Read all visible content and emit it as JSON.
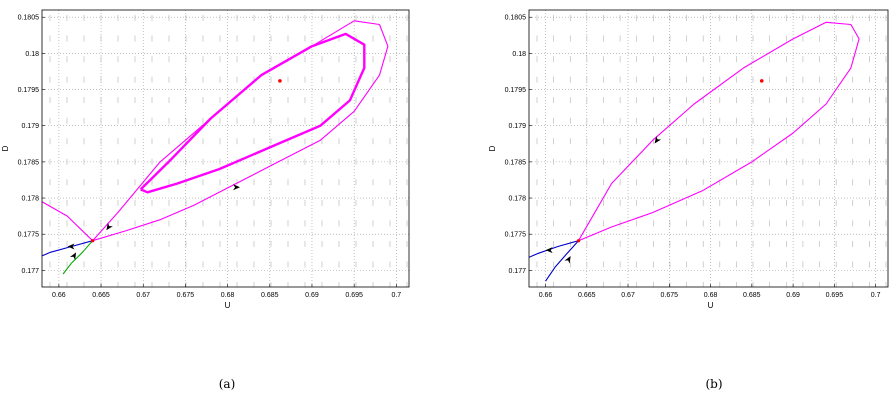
{
  "chart_data": [
    {
      "type": "line",
      "caption": "(a)",
      "xlabel": "U",
      "ylabel": "D",
      "xlim": [
        0.658,
        0.7015
      ],
      "ylim": [
        0.17677,
        0.1806
      ],
      "xticks": [
        "0.66",
        "0.665",
        "0.67",
        "0.675",
        "0.68",
        "0.685",
        "0.69",
        "0.695",
        "0.7"
      ],
      "yticks": [
        "0.177",
        "0.1775",
        "0.178",
        "0.1785",
        "0.179",
        "0.1795",
        "0.18",
        "0.1805"
      ],
      "grid": true,
      "equilibrium": {
        "x": 0.6862,
        "y": 0.17962,
        "color": "#ff0000"
      },
      "saddle": {
        "x": 0.664,
        "y": 0.17741,
        "color": "#ff0000"
      },
      "series": [
        {
          "role": "unstable-manifold-left",
          "color": "#0000cc",
          "x": [
            0.664,
            0.6615,
            0.659,
            0.658
          ],
          "y": [
            0.17741,
            0.17733,
            0.17725,
            0.1772
          ]
        },
        {
          "role": "stable-manifold-lower",
          "color": "#00aa00",
          "x": [
            0.664,
            0.6628,
            0.6615,
            0.6605
          ],
          "y": [
            0.17741,
            0.17725,
            0.1771,
            0.17695
          ]
        },
        {
          "role": "outer-orbit",
          "color": "#ff00ff",
          "x": [
            0.664,
            0.667,
            0.672,
            0.678,
            0.684,
            0.69,
            0.695,
            0.698,
            0.699,
            0.698,
            0.695,
            0.691,
            0.686,
            0.681,
            0.676,
            0.672,
            0.668,
            0.664,
            0.661,
            0.658
          ],
          "y": [
            0.17741,
            0.1778,
            0.1785,
            0.1791,
            0.1797,
            0.1801,
            0.18045,
            0.1804,
            0.1801,
            0.1797,
            0.1792,
            0.1788,
            0.1785,
            0.1782,
            0.1779,
            0.1777,
            0.17755,
            0.17741,
            0.17775,
            0.17795
          ]
        },
        {
          "role": "limit-cycle",
          "color": "#ff00ff",
          "x": [
            0.6697,
            0.673,
            0.678,
            0.684,
            0.69,
            0.694,
            0.6962,
            0.6962,
            0.6945,
            0.691,
            0.685,
            0.679,
            0.674,
            0.6705,
            0.6697
          ],
          "y": [
            0.17812,
            0.1785,
            0.1791,
            0.1797,
            0.1801,
            0.18027,
            0.18012,
            0.1798,
            0.17935,
            0.179,
            0.1787,
            0.1784,
            0.1782,
            0.17808,
            0.17812
          ]
        }
      ],
      "arrows": [
        {
          "x": 0.6615,
          "y": 0.17733,
          "dir": "left"
        },
        {
          "x": 0.6618,
          "y": 0.1772,
          "dir": "up"
        },
        {
          "x": 0.6659,
          "y": 0.1776,
          "dir": "down-left"
        },
        {
          "x": 0.681,
          "y": 0.17815,
          "dir": "right"
        }
      ]
    },
    {
      "type": "line",
      "caption": "(b)",
      "xlabel": "U",
      "ylabel": "D",
      "xlim": [
        0.658,
        0.7015
      ],
      "ylim": [
        0.17677,
        0.1806
      ],
      "xticks": [
        "0.66",
        "0.665",
        "0.67",
        "0.675",
        "0.68",
        "0.685",
        "0.69",
        "0.695",
        "0.7"
      ],
      "yticks": [
        "0.177",
        "0.1775",
        "0.178",
        "0.1785",
        "0.179",
        "0.1795",
        "0.18",
        "0.1805"
      ],
      "grid": true,
      "equilibrium": {
        "x": 0.6862,
        "y": 0.17962,
        "color": "#ff0000"
      },
      "saddle": {
        "x": 0.664,
        "y": 0.17741,
        "color": "#ff0000"
      },
      "series": [
        {
          "role": "unstable-manifold-left",
          "color": "#0000cc",
          "x": [
            0.664,
            0.6615,
            0.659,
            0.658
          ],
          "y": [
            0.17741,
            0.17733,
            0.17723,
            0.17718
          ]
        },
        {
          "role": "stable-manifold-lower",
          "color": "#0000cc",
          "x": [
            0.664,
            0.6625,
            0.6612,
            0.66
          ],
          "y": [
            0.17741,
            0.17722,
            0.17705,
            0.17685
          ]
        },
        {
          "role": "homoclinic-orbit",
          "color": "#ff00ff",
          "x": [
            0.664,
            0.668,
            0.673,
            0.678,
            0.684,
            0.69,
            0.694,
            0.697,
            0.698,
            0.697,
            0.694,
            0.69,
            0.685,
            0.679,
            0.673,
            0.668,
            0.664
          ],
          "y": [
            0.17741,
            0.1782,
            0.1788,
            0.1793,
            0.1798,
            0.1802,
            0.18043,
            0.1804,
            0.1802,
            0.1798,
            0.1793,
            0.1789,
            0.1785,
            0.1781,
            0.1778,
            0.1776,
            0.17741
          ]
        }
      ],
      "arrows": [
        {
          "x": 0.6605,
          "y": 0.17728,
          "dir": "left"
        },
        {
          "x": 0.6628,
          "y": 0.17715,
          "dir": "up"
        },
        {
          "x": 0.6735,
          "y": 0.1788,
          "dir": "down-left"
        }
      ]
    }
  ]
}
